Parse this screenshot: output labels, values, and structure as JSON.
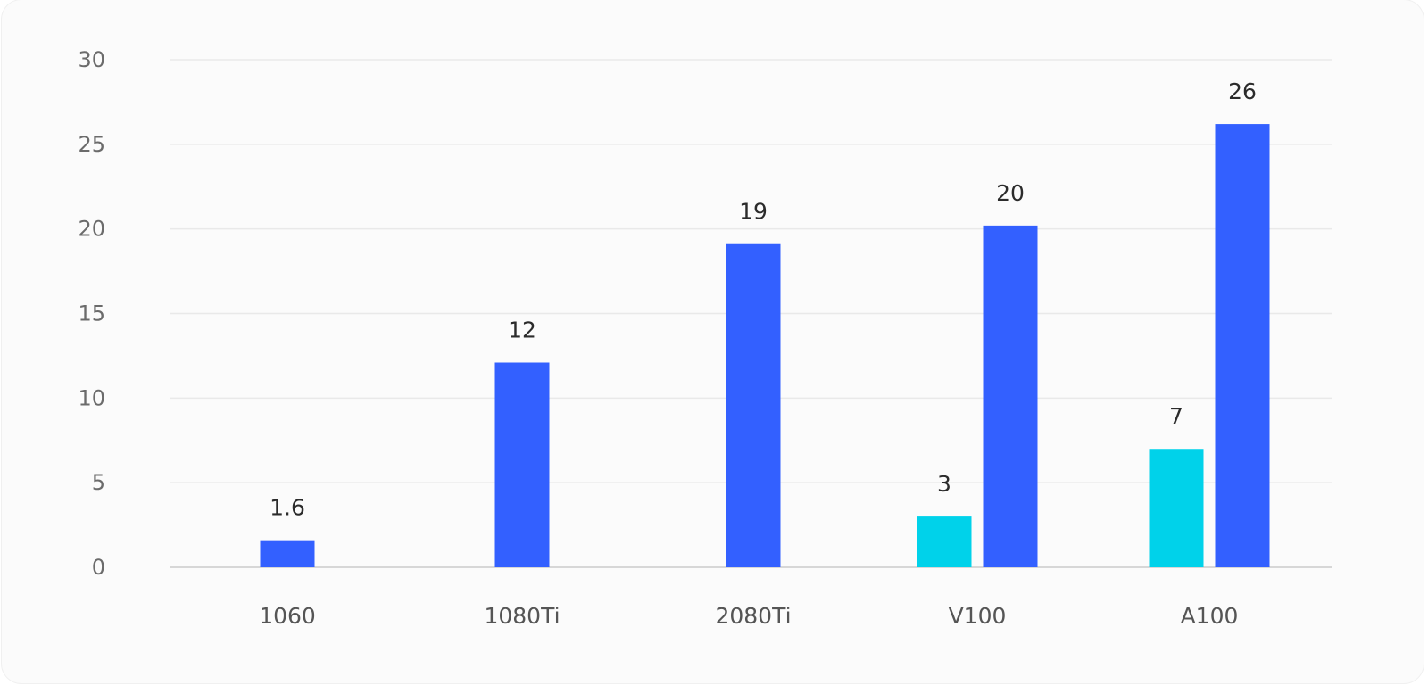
{
  "chart_data": {
    "type": "bar",
    "title": "",
    "xlabel": "",
    "ylabel": "",
    "categories": [
      "1060",
      "1080Ti",
      "2080Ti",
      "V100",
      "A100"
    ],
    "ylim": [
      0,
      30
    ],
    "yticks": [
      0,
      5,
      10,
      15,
      20,
      25,
      30
    ],
    "grid": true,
    "series": [
      {
        "color": "#00d2ea",
        "values": [
          null,
          null,
          null,
          3,
          7
        ],
        "labels": [
          "",
          "",
          "",
          "3",
          "7"
        ]
      },
      {
        "color": "#3360ff",
        "values": [
          1.6,
          12.1,
          19.1,
          20.2,
          26.2
        ],
        "labels": [
          "1.6",
          "12",
          "19",
          "20",
          "26"
        ]
      }
    ]
  }
}
